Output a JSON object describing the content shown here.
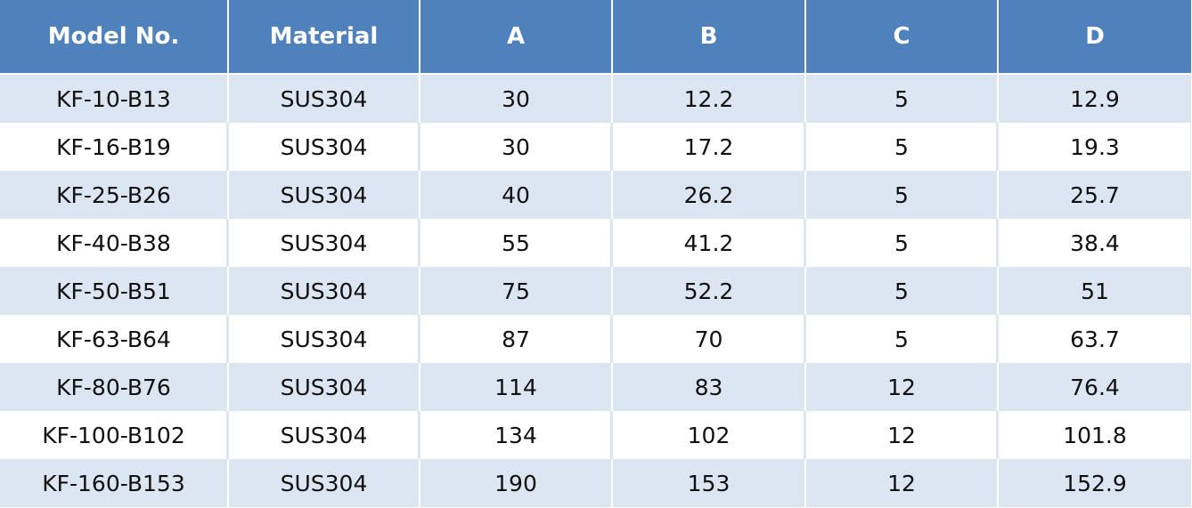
{
  "colors": {
    "header_bg": "#4f81bd",
    "row_alt_bg": "#dce6f2",
    "row_bg": "#ffffff",
    "header_text": "#ffffff"
  },
  "table": {
    "headers": [
      "Model No.",
      "Material",
      "A",
      "B",
      "C",
      "D"
    ],
    "rows": [
      [
        "KF-10-B13",
        "SUS304",
        "30",
        "12.2",
        "5",
        "12.9"
      ],
      [
        "KF-16-B19",
        "SUS304",
        "30",
        "17.2",
        "5",
        "19.3"
      ],
      [
        "KF-25-B26",
        "SUS304",
        "40",
        "26.2",
        "5",
        "25.7"
      ],
      [
        "KF-40-B38",
        "SUS304",
        "55",
        "41.2",
        "5",
        "38.4"
      ],
      [
        "KF-50-B51",
        "SUS304",
        "75",
        "52.2",
        "5",
        "51"
      ],
      [
        "KF-63-B64",
        "SUS304",
        "87",
        "70",
        "5",
        "63.7"
      ],
      [
        "KF-80-B76",
        "SUS304",
        "114",
        "83",
        "12",
        "76.4"
      ],
      [
        "KF-100-B102",
        "SUS304",
        "134",
        "102",
        "12",
        "101.8"
      ],
      [
        "KF-160-B153",
        "SUS304",
        "190",
        "153",
        "12",
        "152.9"
      ]
    ]
  }
}
